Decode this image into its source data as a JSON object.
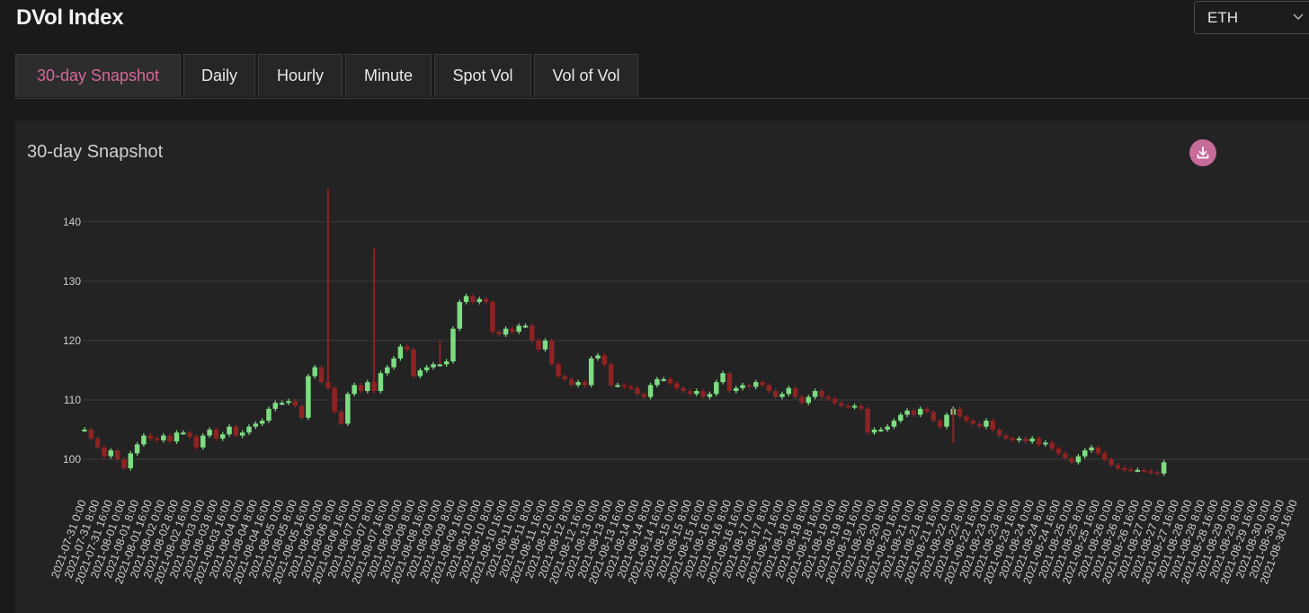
{
  "header": {
    "title": "DVol Index"
  },
  "asset_select": {
    "value": "ETH"
  },
  "tabs": [
    {
      "label": "30-day Snapshot",
      "active": true
    },
    {
      "label": "Daily",
      "active": false
    },
    {
      "label": "Hourly",
      "active": false
    },
    {
      "label": "Minute",
      "active": false
    },
    {
      "label": "Spot Vol",
      "active": false
    },
    {
      "label": "Vol of Vol",
      "active": false
    }
  ],
  "panel": {
    "title": "30-day Snapshot",
    "download_icon": "download-icon"
  },
  "colors": {
    "accent": "#d7679a",
    "up": "#7ddc82",
    "down": "#8e2323",
    "grid": "#3b3b3b",
    "axis_text": "#cfcfcf"
  },
  "chart_data": {
    "type": "candlestick",
    "interval_hours": 4,
    "y_ticks": [
      100,
      110,
      120,
      130,
      140
    ],
    "ylim": [
      95,
      148
    ],
    "x_start": "2021-07-31 0:00",
    "x_end": "2021-08-30 16:00",
    "x_tick_labels": [
      "2021-07-31 0:00",
      "2021-07-31 8:00",
      "2021-07-31 16:00",
      "2021-08-01 0:00",
      "2021-08-01 8:00",
      "2021-08-01 16:00",
      "2021-08-02 0:00",
      "2021-08-02 8:00",
      "2021-08-02 16:00",
      "2021-08-03 0:00",
      "2021-08-03 8:00",
      "2021-08-03 16:00",
      "2021-08-04 0:00",
      "2021-08-04 8:00",
      "2021-08-04 16:00",
      "2021-08-05 0:00",
      "2021-08-05 8:00",
      "2021-08-05 16:00",
      "2021-08-06 0:00",
      "2021-08-06 8:00",
      "2021-08-06 16:00",
      "2021-08-07 0:00",
      "2021-08-07 8:00",
      "2021-08-07 16:00",
      "2021-08-08 0:00",
      "2021-08-08 8:00",
      "2021-08-08 16:00",
      "2021-08-09 0:00",
      "2021-08-09 8:00",
      "2021-08-09 16:00",
      "2021-08-10 0:00",
      "2021-08-10 8:00",
      "2021-08-10 16:00",
      "2021-08-11 0:00",
      "2021-08-11 8:00",
      "2021-08-11 16:00",
      "2021-08-12 0:00",
      "2021-08-12 8:00",
      "2021-08-12 16:00",
      "2021-08-13 0:00",
      "2021-08-13 8:00",
      "2021-08-13 16:00",
      "2021-08-14 0:00",
      "2021-08-14 8:00",
      "2021-08-14 16:00",
      "2021-08-15 0:00",
      "2021-08-15 8:00",
      "2021-08-15 16:00",
      "2021-08-16 0:00",
      "2021-08-16 8:00",
      "2021-08-16 16:00",
      "2021-08-17 0:00",
      "2021-08-17 8:00",
      "2021-08-17 16:00",
      "2021-08-18 0:00",
      "2021-08-18 8:00",
      "2021-08-18 16:00",
      "2021-08-19 0:00",
      "2021-08-19 8:00",
      "2021-08-19 16:00",
      "2021-08-20 0:00",
      "2021-08-20 8:00",
      "2021-08-20 16:00",
      "2021-08-21 0:00",
      "2021-08-21 8:00",
      "2021-08-21 16:00",
      "2021-08-22 0:00",
      "2021-08-22 8:00",
      "2021-08-22 16:00",
      "2021-08-23 0:00",
      "2021-08-23 8:00",
      "2021-08-23 16:00",
      "2021-08-24 0:00",
      "2021-08-24 8:00",
      "2021-08-24 16:00",
      "2021-08-25 0:00",
      "2021-08-25 8:00",
      "2021-08-25 16:00",
      "2021-08-26 0:00",
      "2021-08-26 8:00",
      "2021-08-26 16:00",
      "2021-08-27 0:00",
      "2021-08-27 8:00",
      "2021-08-27 16:00",
      "2021-08-28 0:00",
      "2021-08-28 8:00",
      "2021-08-28 16:00",
      "2021-08-29 0:00",
      "2021-08-29 8:00",
      "2021-08-29 16:00",
      "2021-08-30 0:00",
      "2021-08-30 8:00",
      "2021-08-30 16:00"
    ],
    "close_series": [
      105,
      103.5,
      102,
      100.5,
      101.5,
      100,
      98.5,
      101,
      102.5,
      104,
      103.5,
      103.2,
      104,
      103,
      104.5,
      104.5,
      103.8,
      102,
      104,
      105,
      103.5,
      104.2,
      105.5,
      104,
      104.5,
      105.5,
      106,
      106.5,
      108.5,
      109.5,
      109.5,
      109.8,
      109,
      107,
      114,
      115.5,
      113,
      112,
      108,
      106,
      111,
      112.5,
      111.5,
      113,
      111.5,
      114.5,
      115.5,
      117,
      119,
      118.5,
      114,
      115,
      115.5,
      116,
      116,
      116.5,
      122,
      126.5,
      127.5,
      126.5,
      127,
      126.5,
      121.5,
      121,
      122,
      121.5,
      122.5,
      122.5,
      120,
      118.5,
      120,
      116,
      114,
      113.5,
      112.5,
      113,
      112.5,
      117,
      117.5,
      116,
      112.5,
      112.5,
      112.2,
      112,
      111,
      110.5,
      112.5,
      113.5,
      113.5,
      112.8,
      112,
      111.5,
      111,
      111.5,
      110.5,
      111,
      113,
      114.5,
      111.5,
      112,
      112.5,
      112.2,
      113,
      112.5,
      111.5,
      110.5,
      111,
      112,
      110.5,
      109.5,
      110.5,
      111.5,
      110.5,
      110.2,
      109.5,
      109,
      108.8,
      109,
      108.5,
      104.5,
      105,
      105,
      105.5,
      106.5,
      107.5,
      108.2,
      107.5,
      108.5,
      108,
      106.5,
      105.5,
      107.5,
      108.5,
      107.2,
      106.5,
      106,
      105.5,
      106.5,
      105,
      104,
      103.5,
      103.2,
      103.5,
      103,
      103.5,
      102.5,
      102.8,
      101.8,
      101,
      100.2,
      99.5,
      100.5,
      101.5,
      102,
      101,
      100,
      99,
      98.5,
      98.3,
      98.2,
      98.2,
      98,
      97.8,
      97.6,
      99.5
    ],
    "spikes": [
      {
        "time": "2021-08-06 4:00",
        "high": 145.5
      },
      {
        "time": "2021-08-07 8:00",
        "high": 135.5
      },
      {
        "time": "2021-08-09 0:00",
        "high": 120
      },
      {
        "time": "2021-08-22 0:00",
        "low": 102.8
      }
    ]
  }
}
